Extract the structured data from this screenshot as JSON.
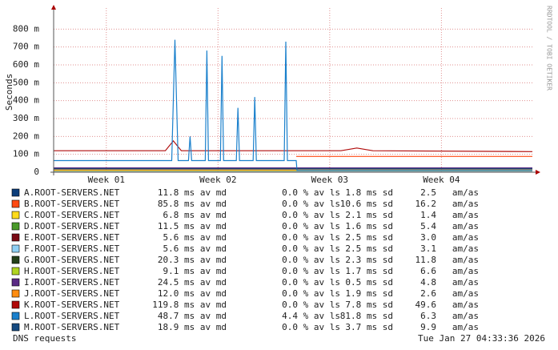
{
  "chart_data": {
    "type": "line",
    "y_label": "Seconds",
    "watermark": "RRDTOOL / TOBI OETIKER",
    "footer_left": "DNS requests",
    "footer_right": "Tue Jan 27 04:33:36 2026",
    "xlim": [
      0,
      30
    ],
    "xticks": [
      {
        "value": 3.3,
        "label": "Week 01"
      },
      {
        "value": 10.3,
        "label": "Week 02"
      },
      {
        "value": 17.3,
        "label": "Week 03"
      },
      {
        "value": 24.3,
        "label": "Week 04"
      }
    ],
    "ylim": [
      0,
      0.9
    ],
    "yticks": [
      0,
      {
        "value": 0.1,
        "label": "100 m"
      },
      {
        "value": 0.2,
        "label": "200 m"
      },
      {
        "value": 0.3,
        "label": "300 m"
      },
      {
        "value": 0.4,
        "label": "400 m"
      },
      {
        "value": 0.5,
        "label": "500 m"
      },
      {
        "value": 0.6,
        "label": "600 m"
      },
      {
        "value": 0.7,
        "label": "700 m"
      },
      {
        "value": 0.8,
        "label": "800 m"
      }
    ],
    "grid": true,
    "series": [
      {
        "name": "A.ROOT-SERVERS.NET",
        "color": "#0b3d7a",
        "x": [
          0,
          30
        ],
        "values": [
          0.012,
          0.012
        ],
        "stats": [
          "11.8 ms av md",
          "0.0 % av ls",
          "1.8 ms sd",
          "2.5   am/as"
        ]
      },
      {
        "name": "B.ROOT-SERVERS.NET",
        "color": "#ff4a12",
        "x": [
          15.2,
          30
        ],
        "values": [
          0.088,
          0.088
        ],
        "stats": [
          "85.8 ms av md",
          "0.0 % av ls",
          "10.6 ms sd",
          "16.2   am/as"
        ]
      },
      {
        "name": "C.ROOT-SERVERS.NET",
        "color": "#ffdb1a",
        "x": [
          0,
          30
        ],
        "values": [
          0.007,
          0.007
        ],
        "stats": [
          "6.8 ms av md",
          "0.0 % av ls",
          "2.1 ms sd",
          "1.4   am/as"
        ]
      },
      {
        "name": "D.ROOT-SERVERS.NET",
        "color": "#4a9a2a",
        "x": [
          0,
          30
        ],
        "values": [
          0.011,
          0.011
        ],
        "stats": [
          "11.5 ms av md",
          "0.0 % av ls",
          "1.6 ms sd",
          "5.4   am/as"
        ]
      },
      {
        "name": "E.ROOT-SERVERS.NET",
        "color": "#7a0a14",
        "x": [
          0,
          30
        ],
        "values": [
          0.006,
          0.006
        ],
        "stats": [
          "5.6 ms av md",
          "0.0 % av ls",
          "2.5 ms sd",
          "3.0   am/as"
        ]
      },
      {
        "name": "F.ROOT-SERVERS.NET",
        "color": "#8fd0f5",
        "x": [
          0,
          30
        ],
        "values": [
          0.006,
          0.006
        ],
        "stats": [
          "5.6 ms av md",
          "0.0 % av ls",
          "2.5 ms sd",
          "3.1   am/as"
        ]
      },
      {
        "name": "G.ROOT-SERVERS.NET",
        "color": "#24401a",
        "x": [
          0,
          30
        ],
        "values": [
          0.02,
          0.02
        ],
        "stats": [
          "20.3 ms av md",
          "0.0 % av ls",
          "2.3 ms sd",
          "11.8   am/as"
        ]
      },
      {
        "name": "H.ROOT-SERVERS.NET",
        "color": "#b0d420",
        "x": [
          0,
          30
        ],
        "values": [
          0.009,
          0.009
        ],
        "stats": [
          "9.1 ms av md",
          "0.0 % av ls",
          "1.7 ms sd",
          "6.6   am/as"
        ]
      },
      {
        "name": "I.ROOT-SERVERS.NET",
        "color": "#5a2a84",
        "x": [
          0,
          30
        ],
        "values": [
          0.024,
          0.024
        ],
        "stats": [
          "24.5 ms av md",
          "0.0 % av ls",
          "0.5 ms sd",
          "4.8   am/as"
        ]
      },
      {
        "name": "J.ROOT-SERVERS.NET",
        "color": "#ff8c10",
        "x": [
          0,
          30
        ],
        "values": [
          0.012,
          0.012
        ],
        "stats": [
          "12.0 ms av md",
          "0.0 % av ls",
          "1.9 ms sd",
          "2.6   am/as"
        ]
      },
      {
        "name": "K.ROOT-SERVERS.NET",
        "color": "#b00a0a",
        "x": [
          0,
          7,
          7.5,
          8,
          12,
          18,
          19,
          20,
          30
        ],
        "values": [
          0.12,
          0.12,
          0.175,
          0.12,
          0.12,
          0.12,
          0.135,
          0.12,
          0.115
        ],
        "stats": [
          "119.8 ms av md",
          "0.0 % av ls",
          "7.8 ms sd",
          "49.6   am/as"
        ]
      },
      {
        "name": "L.ROOT-SERVERS.NET",
        "color": "#1a80cc",
        "x": [
          0,
          7.4,
          7.6,
          7.8,
          8.45,
          8.55,
          8.65,
          9.5,
          9.6,
          9.7,
          10.45,
          10.55,
          10.65,
          11.45,
          11.55,
          11.65,
          12.5,
          12.6,
          12.7,
          14.45,
          14.55,
          14.65,
          15.2,
          15.25,
          30
        ],
        "values": [
          0.065,
          0.065,
          0.74,
          0.065,
          0.065,
          0.2,
          0.065,
          0.065,
          0.68,
          0.065,
          0.065,
          0.65,
          0.065,
          0.065,
          0.36,
          0.065,
          0.065,
          0.42,
          0.065,
          0.065,
          0.73,
          0.065,
          0.065,
          0.01,
          0.01
        ],
        "stats": [
          "48.7 ms av md",
          "4.4 % av ls",
          "81.8 ms sd",
          "6.3   am/as"
        ]
      },
      {
        "name": "M.ROOT-SERVERS.NET",
        "color": "#164a80",
        "x": [
          0,
          30
        ],
        "values": [
          0.019,
          0.019
        ],
        "stats": [
          "18.9 ms av md",
          "0.0 % av ls",
          "3.7 ms sd",
          "9.9   am/as"
        ]
      }
    ]
  }
}
